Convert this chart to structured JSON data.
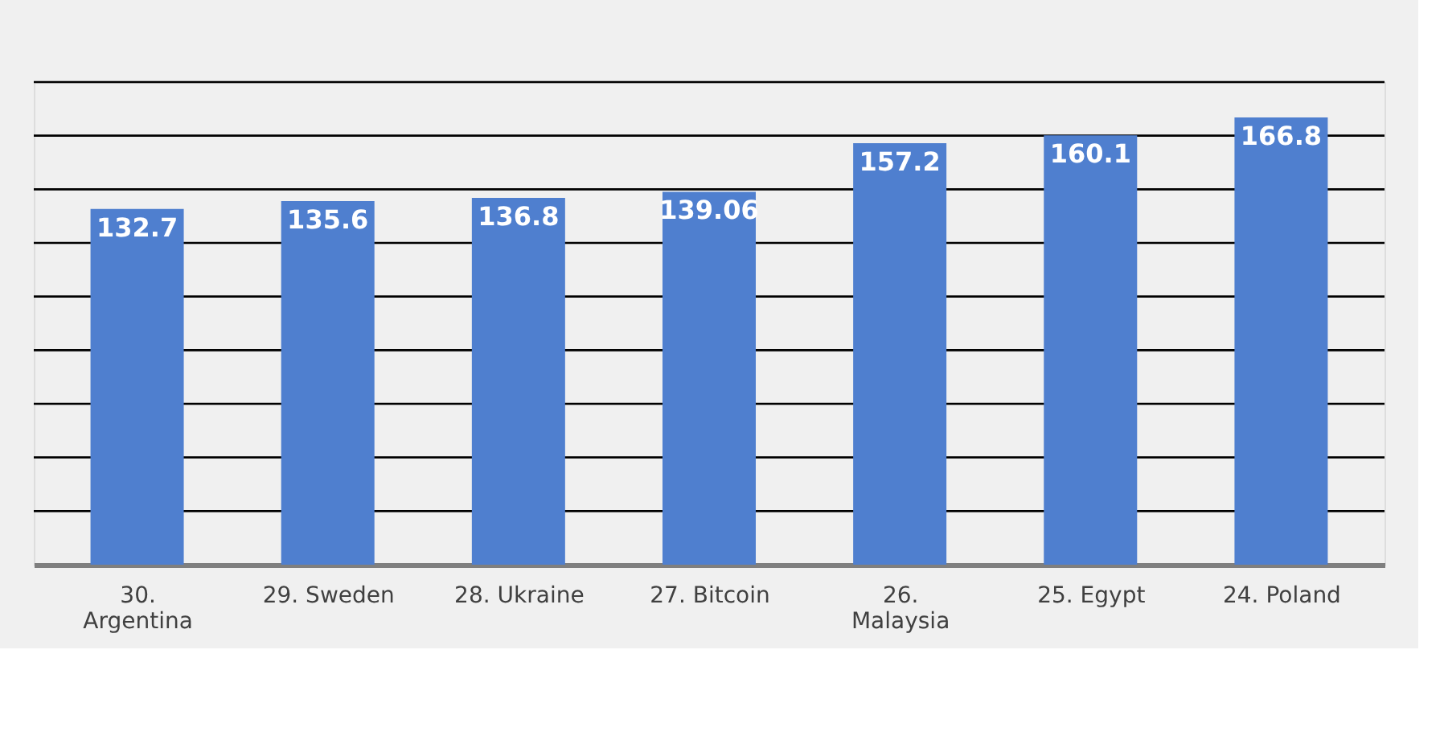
{
  "chart_data": {
    "type": "bar",
    "categories": [
      "30. Argentina",
      "29. Sweden",
      "28. Ukraine",
      "27. Bitcoin",
      "26. Malaysia",
      "25. Egypt",
      "24. Poland"
    ],
    "values": [
      132.7,
      135.6,
      136.8,
      139.06,
      157.2,
      160.1,
      166.8
    ],
    "color": "#4f7fcf",
    "ylim": [
      0,
      180
    ],
    "yticks": [
      {
        "value": 0,
        "label": null
      },
      {
        "value": 20,
        "label": null
      },
      {
        "value": 40,
        "label": null
      },
      {
        "value": 60,
        "label": null
      },
      {
        "value": 80,
        "label": null
      },
      {
        "value": 100,
        "label": null
      },
      {
        "value": 120,
        "label": null
      },
      {
        "value": 140,
        "label": null
      },
      {
        "value": 160,
        "label": null
      },
      {
        "value": 180,
        "label": null
      }
    ],
    "grid": "y",
    "tick_labels": "x",
    "data_labels": true
  }
}
